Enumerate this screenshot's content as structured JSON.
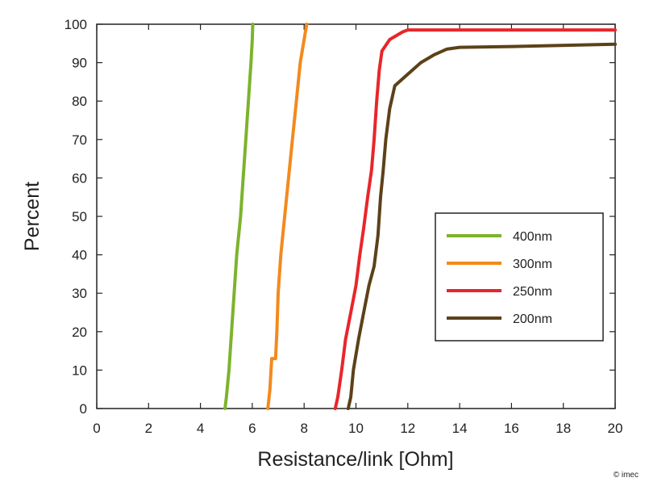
{
  "chart_data": {
    "type": "line",
    "xlabel": "Resistance/link [Ohm]",
    "ylabel": "Percent",
    "xlim": [
      0,
      20
    ],
    "ylim": [
      0,
      100
    ],
    "xticks": [
      0,
      2,
      4,
      6,
      8,
      10,
      12,
      14,
      16,
      18,
      20
    ],
    "yticks": [
      0,
      10,
      20,
      30,
      40,
      50,
      60,
      70,
      80,
      90,
      100
    ],
    "grid": false,
    "legend_position": "right-center",
    "series": [
      {
        "name": "400nm",
        "color": "#7db32d",
        "points": [
          [
            4.95,
            0
          ],
          [
            5.0,
            3
          ],
          [
            5.1,
            10
          ],
          [
            5.2,
            20
          ],
          [
            5.3,
            30
          ],
          [
            5.4,
            40
          ],
          [
            5.55,
            50
          ],
          [
            5.65,
            60
          ],
          [
            5.75,
            70
          ],
          [
            5.85,
            80
          ],
          [
            5.95,
            90
          ],
          [
            6.0,
            96
          ],
          [
            6.02,
            100
          ]
        ]
      },
      {
        "name": "300nm",
        "color": "#f28a1e",
        "points": [
          [
            6.6,
            0
          ],
          [
            6.68,
            5
          ],
          [
            6.75,
            13
          ],
          [
            6.9,
            13
          ],
          [
            6.95,
            20
          ],
          [
            7.0,
            30
          ],
          [
            7.1,
            40
          ],
          [
            7.25,
            50
          ],
          [
            7.4,
            60
          ],
          [
            7.55,
            70
          ],
          [
            7.7,
            80
          ],
          [
            7.85,
            90
          ],
          [
            8.0,
            96
          ],
          [
            8.1,
            100
          ]
        ]
      },
      {
        "name": "250nm",
        "color": "#e8262a",
        "points": [
          [
            9.2,
            0
          ],
          [
            9.3,
            3
          ],
          [
            9.45,
            10
          ],
          [
            9.6,
            18
          ],
          [
            9.8,
            25
          ],
          [
            10.0,
            32
          ],
          [
            10.15,
            40
          ],
          [
            10.3,
            47
          ],
          [
            10.45,
            55
          ],
          [
            10.6,
            62
          ],
          [
            10.7,
            70
          ],
          [
            10.8,
            80
          ],
          [
            10.9,
            88
          ],
          [
            11.0,
            93
          ],
          [
            11.3,
            96
          ],
          [
            11.8,
            98
          ],
          [
            12.0,
            98.5
          ],
          [
            14.0,
            98.5
          ],
          [
            20.0,
            98.5
          ]
        ]
      },
      {
        "name": "200nm",
        "color": "#5c4119",
        "points": [
          [
            9.7,
            0
          ],
          [
            9.8,
            3
          ],
          [
            9.9,
            10
          ],
          [
            10.1,
            18
          ],
          [
            10.3,
            25
          ],
          [
            10.5,
            32
          ],
          [
            10.7,
            37
          ],
          [
            10.85,
            45
          ],
          [
            10.95,
            55
          ],
          [
            11.05,
            62
          ],
          [
            11.15,
            70
          ],
          [
            11.3,
            78
          ],
          [
            11.5,
            84
          ],
          [
            12.0,
            87
          ],
          [
            12.5,
            90
          ],
          [
            13.0,
            92
          ],
          [
            13.5,
            93.5
          ],
          [
            14.0,
            94
          ],
          [
            16.0,
            94.2
          ],
          [
            20.0,
            94.8
          ]
        ]
      }
    ]
  },
  "credit": "© imec"
}
